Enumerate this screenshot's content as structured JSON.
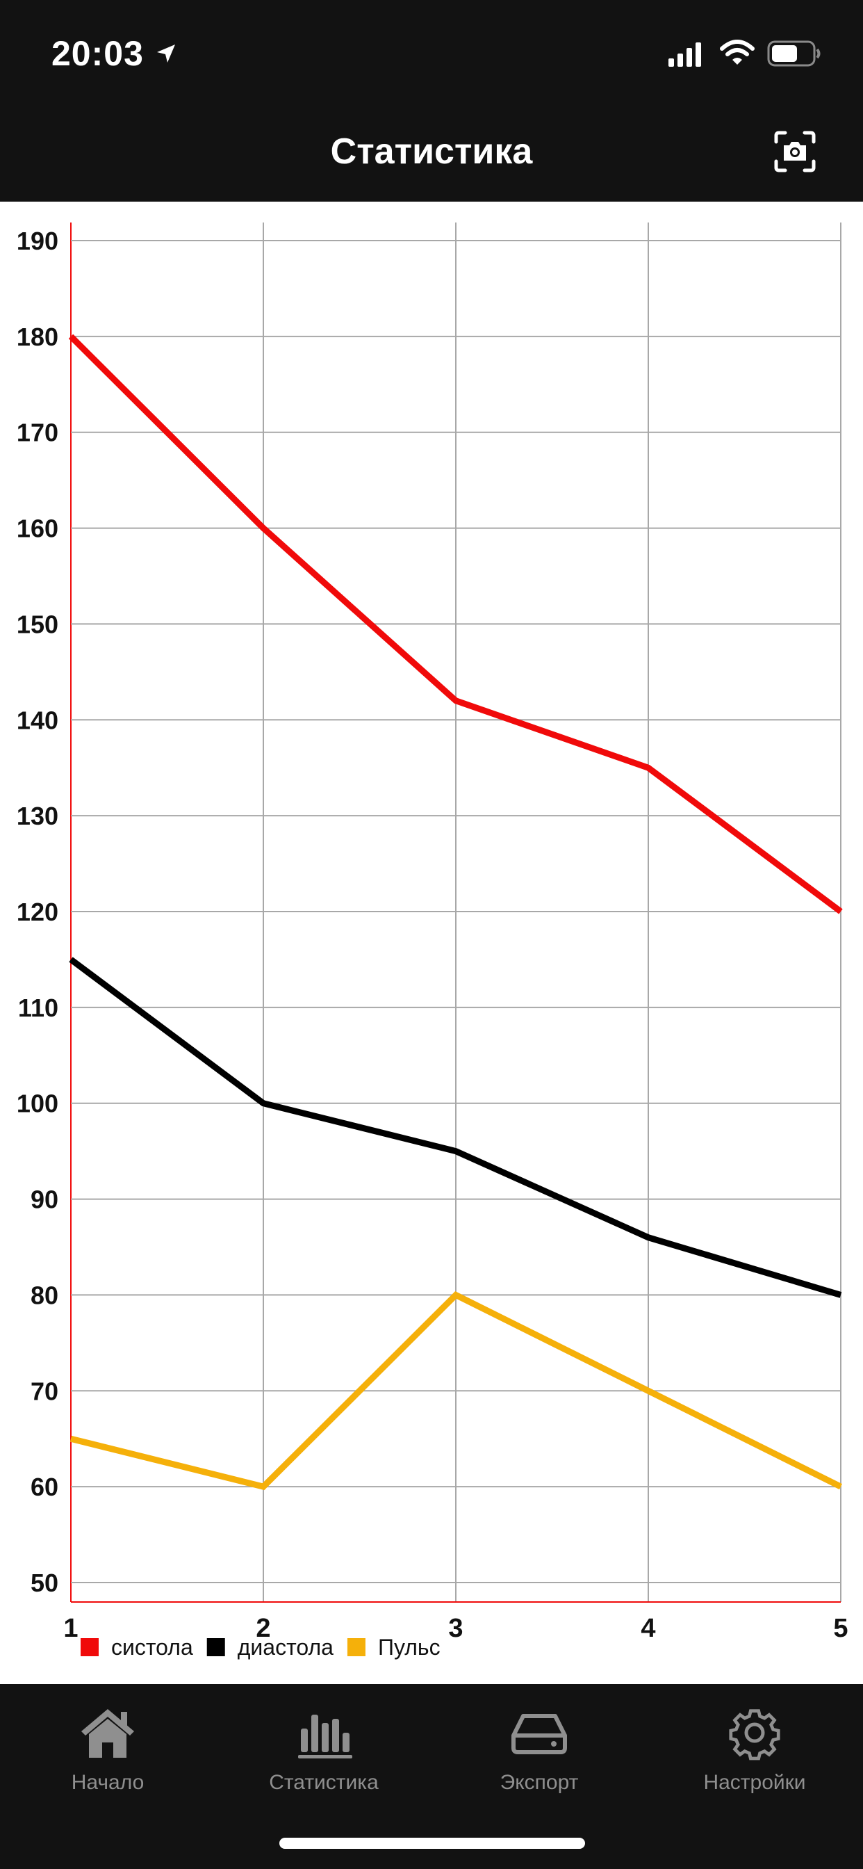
{
  "status_bar": {
    "time": "20:03"
  },
  "header": {
    "title": "Статистика"
  },
  "chart_data": {
    "type": "line",
    "x": [
      1,
      2,
      3,
      4,
      5
    ],
    "ylim": [
      50,
      190
    ],
    "yticks": [
      50,
      60,
      70,
      80,
      90,
      100,
      110,
      120,
      130,
      140,
      150,
      160,
      170,
      180,
      190
    ],
    "grid": true,
    "legend_position": "bottom-left",
    "series": [
      {
        "name": "систола",
        "color": "#f00a0a",
        "values": [
          180,
          160,
          142,
          135,
          120
        ]
      },
      {
        "name": "диастола",
        "color": "#000000",
        "values": [
          115,
          100,
          95,
          86,
          80
        ]
      },
      {
        "name": "Пульс",
        "color": "#f5b00a",
        "values": [
          65,
          60,
          80,
          70,
          60
        ]
      }
    ]
  },
  "tabbar": {
    "items": [
      {
        "label": "Начало",
        "icon": "home-icon"
      },
      {
        "label": "Статистика",
        "icon": "bar-chart-icon"
      },
      {
        "label": "Экспорт",
        "icon": "drive-icon"
      },
      {
        "label": "Настройки",
        "icon": "gear-icon"
      }
    ]
  },
  "colors": {
    "background": "#121212",
    "accent_red": "#f00a0a",
    "accent_yellow": "#f5b00a",
    "tab_inactive": "#8f8f8f"
  }
}
